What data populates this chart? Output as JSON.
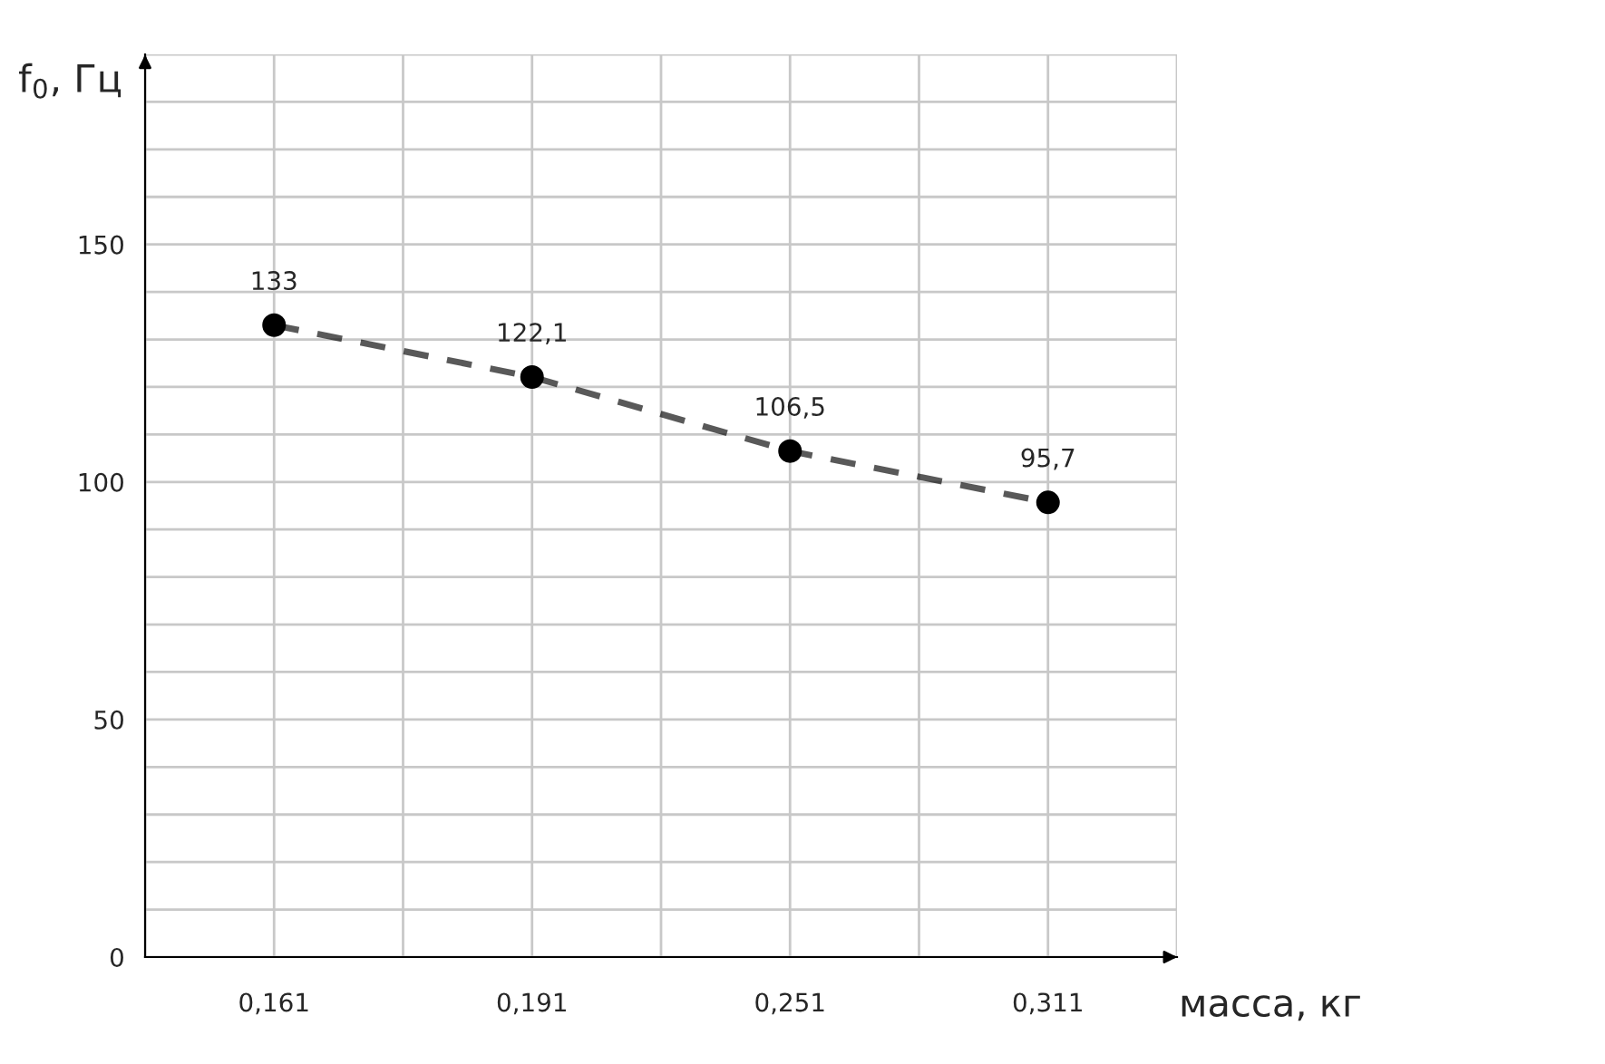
{
  "chart_data": {
    "type": "line",
    "xlabel": "масса, кг",
    "ylabel": "f$_{0}$, Гц",
    "categories": [
      "0,161",
      "0,191",
      "0,251",
      "0,311"
    ],
    "series": [
      {
        "color": "#000000",
        "values": [
          133,
          122.1,
          106.5,
          95.7
        ],
        "value_labels": [
          "133",
          "122,1",
          "106,5",
          "95,7"
        ]
      }
    ],
    "ylim": [
      0,
      190
    ],
    "yticks": [
      0,
      {
        "value": 10,
        "label": null
      },
      {
        "value": 20,
        "label": null
      },
      {
        "value": 30,
        "label": null
      },
      {
        "value": 40,
        "label": null
      },
      50,
      {
        "value": 60,
        "label": null
      },
      {
        "value": 70,
        "label": null
      },
      {
        "value": 80,
        "label": null
      },
      {
        "value": 90,
        "label": null
      },
      100,
      {
        "value": 110,
        "label": null
      },
      {
        "value": 120,
        "label": null
      },
      {
        "value": 130,
        "label": null
      },
      {
        "value": 140,
        "label": null
      },
      150,
      {
        "value": 160,
        "label": null
      },
      {
        "value": 170,
        "label": null
      },
      {
        "value": 180,
        "label": null
      },
      {
        "value": 190,
        "label": null
      }
    ],
    "grid": true,
    "marker": "circle",
    "line_style": "dashed",
    "legend": false
  }
}
